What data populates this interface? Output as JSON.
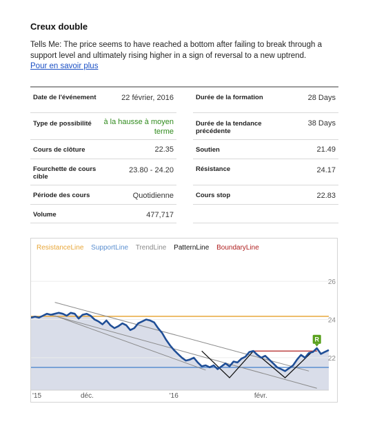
{
  "header": {
    "title": "Creux double",
    "description": "Tells Me: The price seems to have reached a bottom after failing to break through a support level and ultimately rising higher in a sign of reversal to a new uptrend.",
    "link": "Pour en savoir plus"
  },
  "details": {
    "left": [
      {
        "label": "Date de l'événement",
        "value": "22 février, 2016"
      },
      {
        "label": "Type de possibilité",
        "value": "à la hausse à moyen terme"
      },
      {
        "label": "Cours de clôture",
        "value": "22.35"
      },
      {
        "label": "Fourchette de cours cible",
        "value": "23.80 - 24.20"
      },
      {
        "label": "Période des cours",
        "value": "Quotidienne"
      },
      {
        "label": "Volume",
        "value": "477,717"
      }
    ],
    "right": [
      {
        "label": "Durée de la formation",
        "value": "28 Days"
      },
      {
        "label": "Durée de la tendance précédente",
        "value": "38 Days"
      },
      {
        "label": "Soutien",
        "value": "21.49"
      },
      {
        "label": "Résistance",
        "value": "24.17"
      },
      {
        "label": "Cours stop",
        "value": "22.83"
      }
    ]
  },
  "colors": {
    "green_value": "#2f8a1c",
    "resistance": "#e8a73a",
    "support": "#5b8fd0",
    "trend": "#8a8a8a",
    "pattern": "#111111",
    "boundary": "#b02020",
    "price": "#1f4e96",
    "area": "#d9dde9",
    "marker": "#5aa11e"
  },
  "chart_data": {
    "type": "line",
    "legend": [
      "ResistanceLine",
      "SupportLine",
      "TrendLine",
      "PatternLine",
      "BoundaryLine"
    ],
    "x_tick_labels": [
      "'15",
      "déc.",
      "'16",
      "févr."
    ],
    "y_tick_labels": [
      "26",
      "24",
      "22"
    ],
    "ylim": [
      20.3,
      26.8
    ],
    "resistance_level": 24.17,
    "support_level": 21.49,
    "marker_label": "R",
    "price_series": [
      24.1,
      24.15,
      24.1,
      24.2,
      24.3,
      24.25,
      24.3,
      24.35,
      24.3,
      24.2,
      24.35,
      24.3,
      24.05,
      24.25,
      24.3,
      24.2,
      24.0,
      23.9,
      23.75,
      23.95,
      23.7,
      23.55,
      23.65,
      23.8,
      23.7,
      23.45,
      23.55,
      23.8,
      23.9,
      24.0,
      23.95,
      23.85,
      23.55,
      23.3,
      22.95,
      22.65,
      22.4,
      22.2,
      22.0,
      21.85,
      21.9,
      22.0,
      21.75,
      21.55,
      21.6,
      21.5,
      21.6,
      21.4,
      21.55,
      21.7,
      21.55,
      21.8,
      21.75,
      21.95,
      22.05,
      22.3,
      22.35,
      22.15,
      22.0,
      22.1,
      21.9,
      21.7,
      21.5,
      21.4,
      21.3,
      21.45,
      21.6,
      21.9,
      22.15,
      22.0,
      22.25,
      22.3,
      22.5,
      22.2,
      22.3,
      22.4
    ]
  }
}
